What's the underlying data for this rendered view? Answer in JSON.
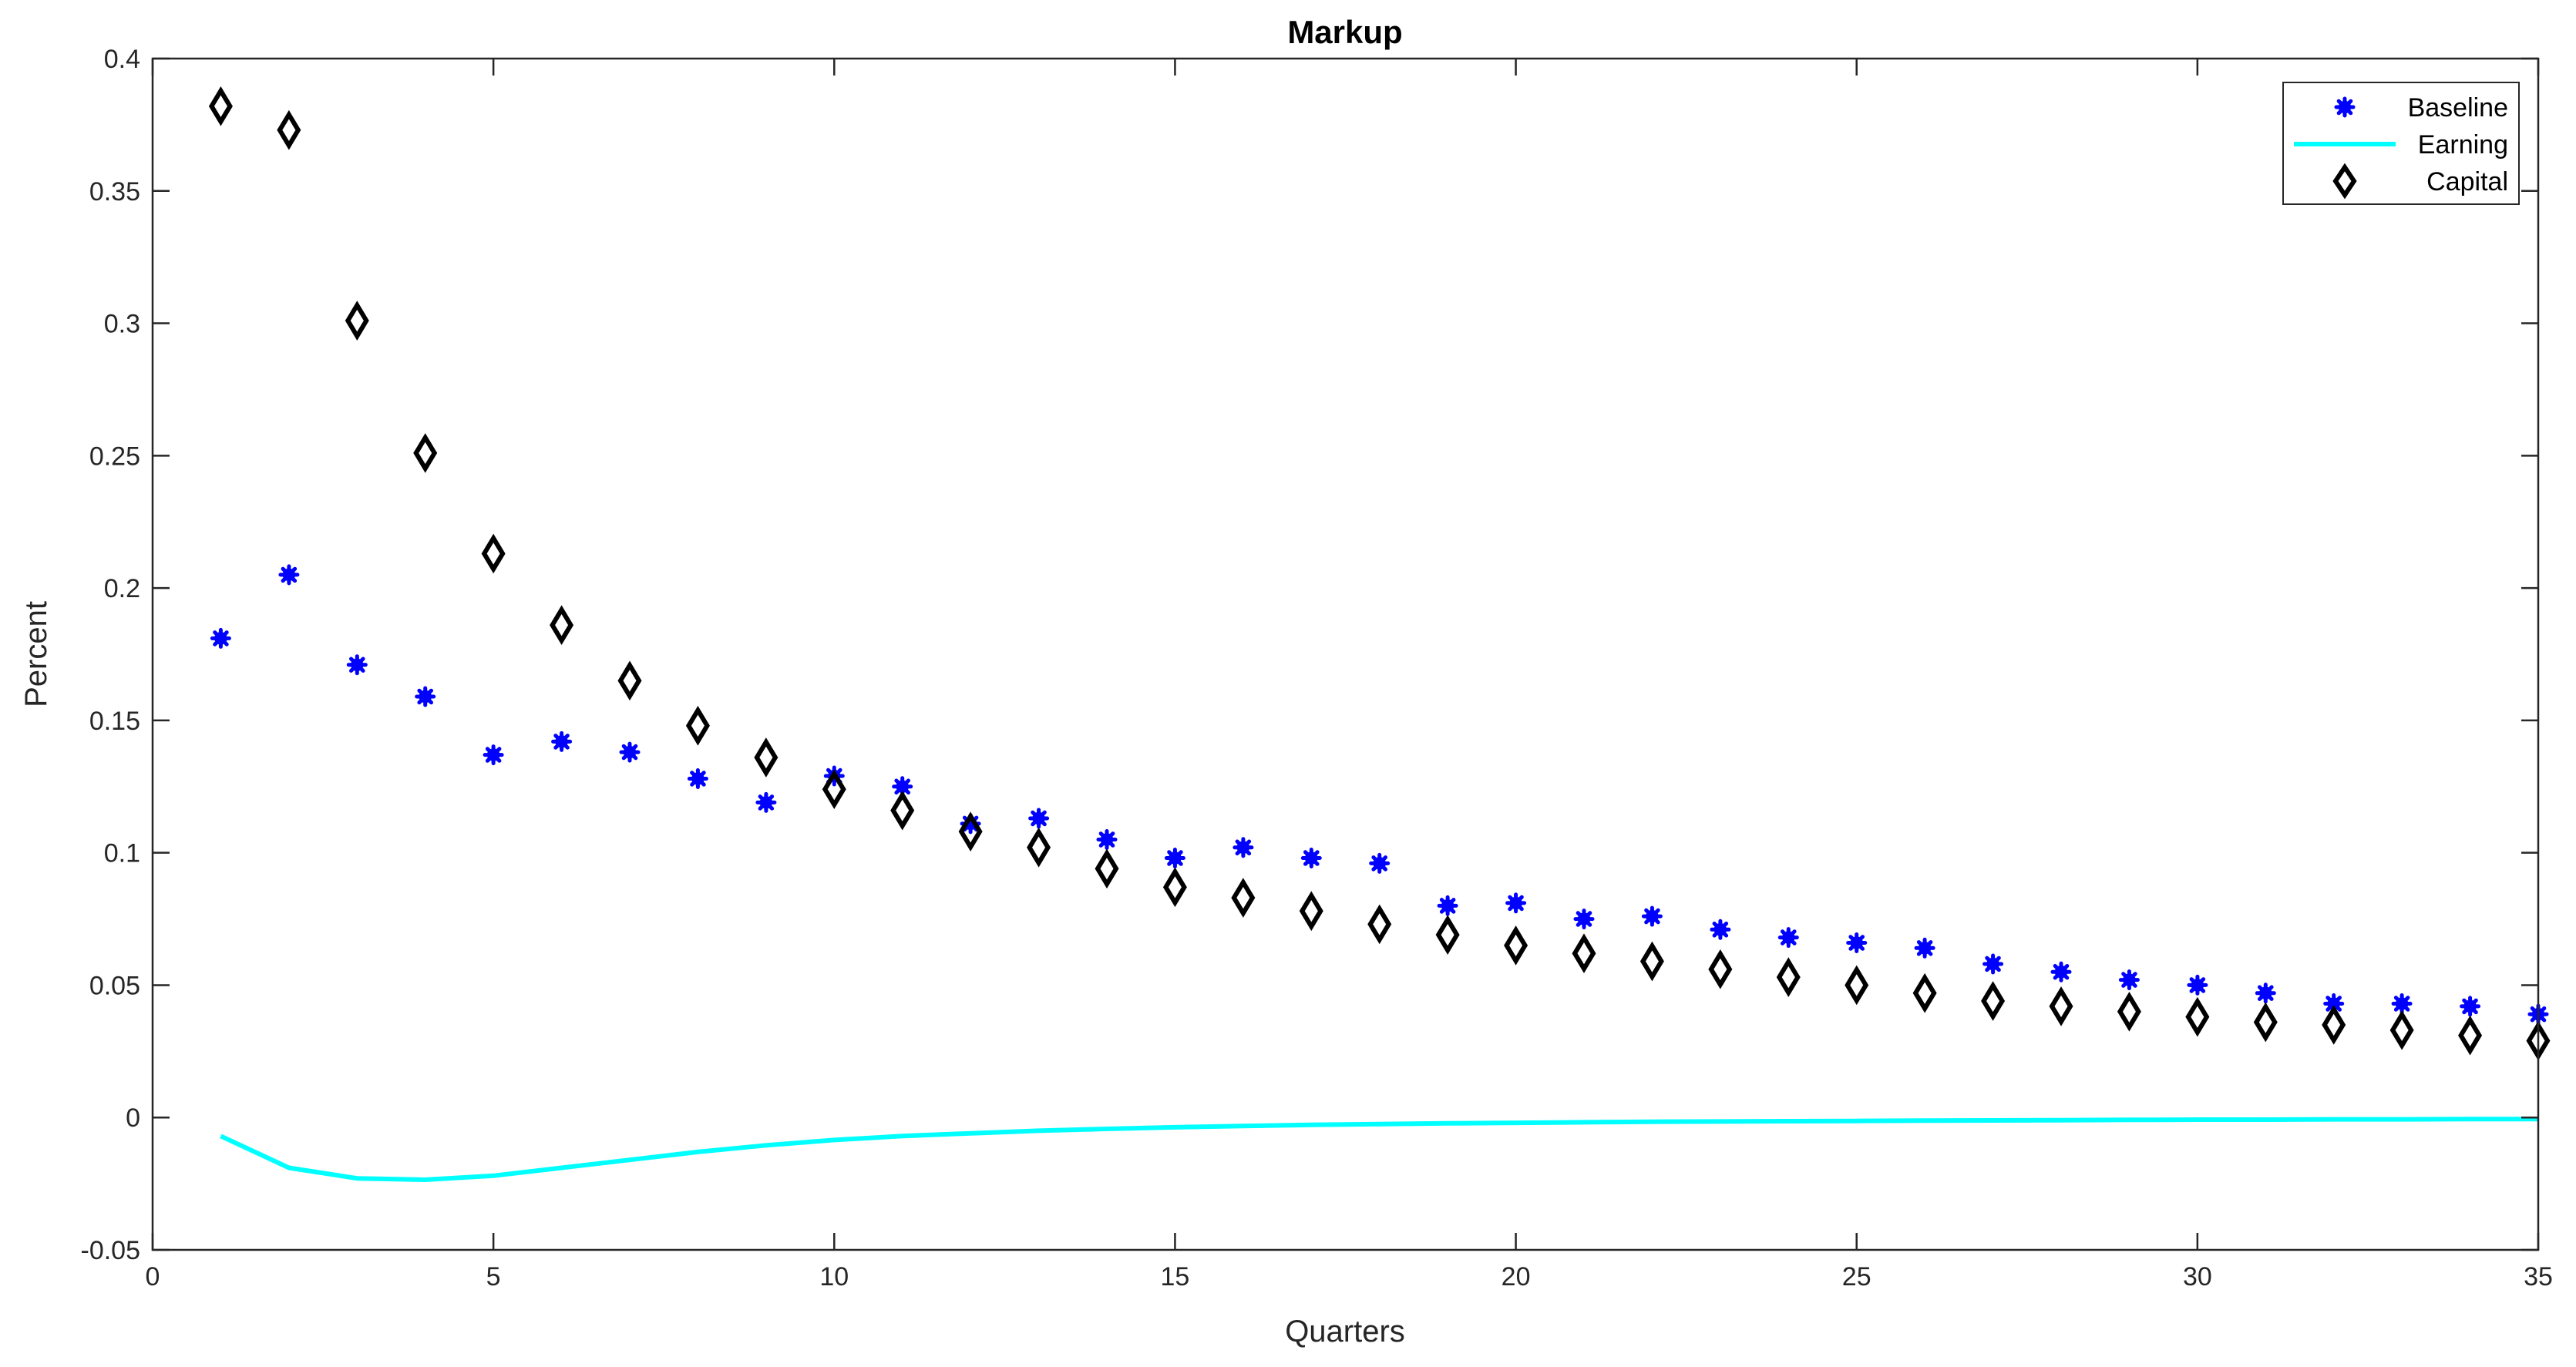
{
  "chart_data": {
    "type": "scatter",
    "title": "Markup",
    "xlabel": "Quarters",
    "ylabel": "Percent",
    "xlim": [
      0,
      35
    ],
    "ylim": [
      -0.05,
      0.4
    ],
    "xticks": [
      0,
      5,
      10,
      15,
      20,
      25,
      30,
      35
    ],
    "yticks": [
      -0.05,
      0,
      0.05,
      0.1,
      0.15,
      0.2,
      0.25,
      0.3,
      0.35,
      0.4
    ],
    "xtick_labels": [
      "0",
      "5",
      "10",
      "15",
      "20",
      "25",
      "30",
      "35"
    ],
    "ytick_labels": [
      "-0.05",
      "0",
      "0.05",
      "0.1",
      "0.15",
      "0.2",
      "0.25",
      "0.3",
      "0.35",
      "0.4"
    ],
    "grid": false,
    "legend_position": "top-right",
    "x": [
      1,
      2,
      3,
      4,
      5,
      6,
      7,
      8,
      9,
      10,
      11,
      12,
      13,
      14,
      15,
      16,
      17,
      18,
      19,
      20,
      21,
      22,
      23,
      24,
      25,
      26,
      27,
      28,
      29,
      30,
      31,
      32,
      33,
      34,
      35
    ],
    "series": [
      {
        "name": "Baseline",
        "marker": "asterisk",
        "color": "#0000ff",
        "values": [
          0.181,
          0.205,
          0.171,
          0.159,
          0.137,
          0.142,
          0.138,
          0.128,
          0.119,
          0.129,
          0.125,
          0.111,
          0.113,
          0.105,
          0.098,
          0.102,
          0.098,
          0.096,
          0.08,
          0.081,
          0.075,
          0.076,
          0.071,
          0.068,
          0.066,
          0.064,
          0.058,
          0.055,
          0.052,
          0.05,
          0.047,
          0.043,
          0.043,
          0.042,
          0.039
        ]
      },
      {
        "name": "Earning",
        "marker": "line",
        "color": "#00ffff",
        "values": [
          -0.007,
          -0.019,
          -0.023,
          -0.0235,
          -0.022,
          -0.019,
          -0.016,
          -0.013,
          -0.0105,
          -0.0085,
          -0.007,
          -0.006,
          -0.005,
          -0.0043,
          -0.0037,
          -0.0032,
          -0.0028,
          -0.0025,
          -0.0022,
          -0.002,
          -0.0018,
          -0.0016,
          -0.0015,
          -0.0014,
          -0.0013,
          -0.0012,
          -0.0011,
          -0.001,
          -0.0009,
          -0.0008,
          -0.0008,
          -0.0007,
          -0.0007,
          -0.0006,
          -0.0006
        ]
      },
      {
        "name": "Capital",
        "marker": "diamond",
        "color": "#000000",
        "values": [
          0.382,
          0.373,
          0.301,
          0.251,
          0.213,
          0.186,
          0.165,
          0.148,
          0.136,
          0.124,
          0.116,
          0.108,
          0.102,
          0.094,
          0.087,
          0.083,
          0.078,
          0.073,
          0.069,
          0.065,
          0.062,
          0.059,
          0.056,
          0.053,
          0.05,
          0.047,
          0.044,
          0.042,
          0.04,
          0.038,
          0.036,
          0.035,
          0.033,
          0.031,
          0.029
        ]
      }
    ]
  }
}
